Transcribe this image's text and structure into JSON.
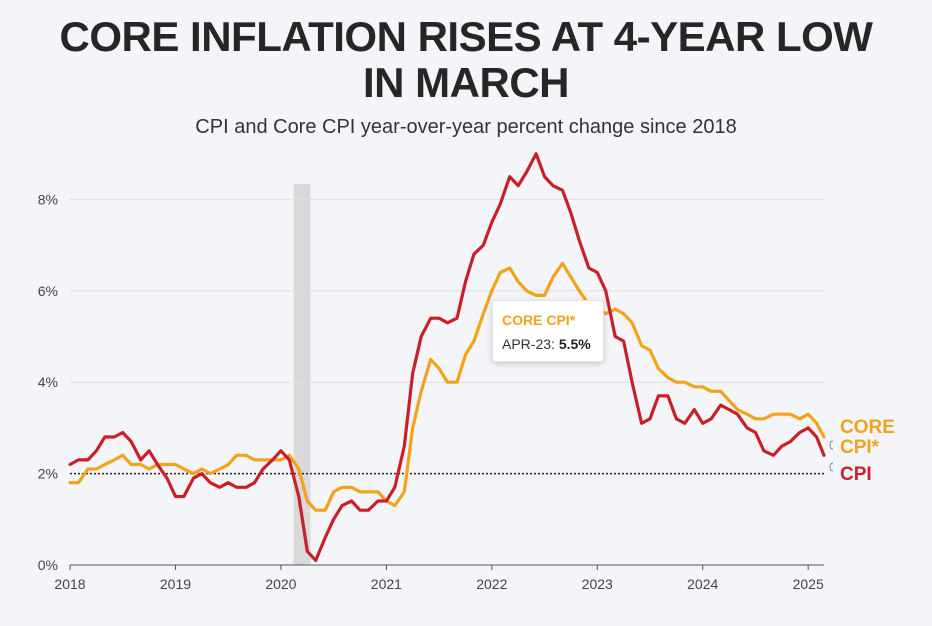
{
  "title_line1": "CORE INFLATION RISES AT 4-YEAR LOW",
  "title_line2": "IN MARCH",
  "subtitle": "CPI and Core CPI year-over-year percent change since 2018",
  "tooltip": {
    "series": "CORE CPI*",
    "label": "APR-23: ",
    "value": "5.5%"
  },
  "colors": {
    "cpi": "#c8202a",
    "core": "#f2a21b",
    "recession": "#d9d9d9",
    "grid": "#dde1e6",
    "axis": "#555555"
  },
  "chart_data": {
    "type": "line",
    "title": "CORE INFLATION RISES AT 4-YEAR LOW IN MARCH",
    "subtitle": "CPI and Core CPI year-over-year percent change since 2018",
    "xlabel": "",
    "ylabel": "",
    "xlim": [
      2018,
      2025.15
    ],
    "ylim": [
      0,
      9.3
    ],
    "x_ticks": [
      2018,
      2019,
      2020,
      2021,
      2022,
      2023,
      2024,
      2025
    ],
    "x_tick_labels": [
      "2018",
      "2019",
      "2020",
      "2021",
      "2022",
      "2023",
      "2024",
      "2025"
    ],
    "y_ticks": [
      0,
      2,
      4,
      6,
      8
    ],
    "y_tick_labels": [
      "0%",
      "2%",
      "4%",
      "6%",
      "8%"
    ],
    "reference_line": {
      "y": 2,
      "style": "dotted"
    },
    "recession_band": {
      "x_start": 2020.12,
      "x_end": 2020.28
    },
    "series": [
      {
        "name": "CPI",
        "label": "CPI",
        "color": "#c8202a",
        "points": [
          [
            2018.0,
            2.2
          ],
          [
            2018.08,
            2.3
          ],
          [
            2018.17,
            2.3
          ],
          [
            2018.25,
            2.5
          ],
          [
            2018.33,
            2.8
          ],
          [
            2018.42,
            2.8
          ],
          [
            2018.5,
            2.9
          ],
          [
            2018.58,
            2.7
          ],
          [
            2018.67,
            2.3
          ],
          [
            2018.75,
            2.5
          ],
          [
            2018.83,
            2.2
          ],
          [
            2018.92,
            1.9
          ],
          [
            2019.0,
            1.5
          ],
          [
            2019.08,
            1.5
          ],
          [
            2019.17,
            1.9
          ],
          [
            2019.25,
            2.0
          ],
          [
            2019.33,
            1.8
          ],
          [
            2019.42,
            1.7
          ],
          [
            2019.5,
            1.8
          ],
          [
            2019.58,
            1.7
          ],
          [
            2019.67,
            1.7
          ],
          [
            2019.75,
            1.8
          ],
          [
            2019.83,
            2.1
          ],
          [
            2019.92,
            2.3
          ],
          [
            2020.0,
            2.5
          ],
          [
            2020.08,
            2.3
          ],
          [
            2020.17,
            1.5
          ],
          [
            2020.25,
            0.3
          ],
          [
            2020.33,
            0.1
          ],
          [
            2020.42,
            0.6
          ],
          [
            2020.5,
            1.0
          ],
          [
            2020.58,
            1.3
          ],
          [
            2020.67,
            1.4
          ],
          [
            2020.75,
            1.2
          ],
          [
            2020.83,
            1.2
          ],
          [
            2020.92,
            1.4
          ],
          [
            2021.0,
            1.4
          ],
          [
            2021.08,
            1.7
          ],
          [
            2021.17,
            2.6
          ],
          [
            2021.25,
            4.2
          ],
          [
            2021.33,
            5.0
          ],
          [
            2021.42,
            5.4
          ],
          [
            2021.5,
            5.4
          ],
          [
            2021.58,
            5.3
          ],
          [
            2021.67,
            5.4
          ],
          [
            2021.75,
            6.2
          ],
          [
            2021.83,
            6.8
          ],
          [
            2021.92,
            7.0
          ],
          [
            2022.0,
            7.5
          ],
          [
            2022.08,
            7.9
          ],
          [
            2022.17,
            8.5
          ],
          [
            2022.25,
            8.3
          ],
          [
            2022.33,
            8.6
          ],
          [
            2022.42,
            9.0
          ],
          [
            2022.5,
            8.5
          ],
          [
            2022.58,
            8.3
          ],
          [
            2022.67,
            8.2
          ],
          [
            2022.75,
            7.7
          ],
          [
            2022.83,
            7.1
          ],
          [
            2022.92,
            6.5
          ],
          [
            2023.0,
            6.4
          ],
          [
            2023.08,
            6.0
          ],
          [
            2023.17,
            5.0
          ],
          [
            2023.25,
            4.9
          ],
          [
            2023.33,
            4.0
          ],
          [
            2023.42,
            3.1
          ],
          [
            2023.5,
            3.2
          ],
          [
            2023.58,
            3.7
          ],
          [
            2023.67,
            3.7
          ],
          [
            2023.75,
            3.2
          ],
          [
            2023.83,
            3.1
          ],
          [
            2023.92,
            3.4
          ],
          [
            2024.0,
            3.1
          ],
          [
            2024.08,
            3.2
          ],
          [
            2024.17,
            3.5
          ],
          [
            2024.25,
            3.4
          ],
          [
            2024.33,
            3.3
          ],
          [
            2024.42,
            3.0
          ],
          [
            2024.5,
            2.9
          ],
          [
            2024.58,
            2.5
          ],
          [
            2024.67,
            2.4
          ],
          [
            2024.75,
            2.6
          ],
          [
            2024.83,
            2.7
          ],
          [
            2024.92,
            2.9
          ],
          [
            2025.0,
            3.0
          ],
          [
            2025.08,
            2.8
          ],
          [
            2025.15,
            2.4
          ]
        ]
      },
      {
        "name": "Core CPI*",
        "label": "CORE CPI*",
        "label_line1": "CORE",
        "label_line2": "CPI*",
        "color": "#f2a21b",
        "points": [
          [
            2018.0,
            1.8
          ],
          [
            2018.08,
            1.8
          ],
          [
            2018.17,
            2.1
          ],
          [
            2018.25,
            2.1
          ],
          [
            2018.33,
            2.2
          ],
          [
            2018.42,
            2.3
          ],
          [
            2018.5,
            2.4
          ],
          [
            2018.58,
            2.2
          ],
          [
            2018.67,
            2.2
          ],
          [
            2018.75,
            2.1
          ],
          [
            2018.83,
            2.2
          ],
          [
            2018.92,
            2.2
          ],
          [
            2019.0,
            2.2
          ],
          [
            2019.08,
            2.1
          ],
          [
            2019.17,
            2.0
          ],
          [
            2019.25,
            2.1
          ],
          [
            2019.33,
            2.0
          ],
          [
            2019.42,
            2.1
          ],
          [
            2019.5,
            2.2
          ],
          [
            2019.58,
            2.4
          ],
          [
            2019.67,
            2.4
          ],
          [
            2019.75,
            2.3
          ],
          [
            2019.83,
            2.3
          ],
          [
            2019.92,
            2.3
          ],
          [
            2020.0,
            2.3
          ],
          [
            2020.08,
            2.4
          ],
          [
            2020.17,
            2.1
          ],
          [
            2020.25,
            1.4
          ],
          [
            2020.33,
            1.2
          ],
          [
            2020.42,
            1.2
          ],
          [
            2020.5,
            1.6
          ],
          [
            2020.58,
            1.7
          ],
          [
            2020.67,
            1.7
          ],
          [
            2020.75,
            1.6
          ],
          [
            2020.83,
            1.6
          ],
          [
            2020.92,
            1.6
          ],
          [
            2021.0,
            1.4
          ],
          [
            2021.08,
            1.3
          ],
          [
            2021.17,
            1.6
          ],
          [
            2021.25,
            3.0
          ],
          [
            2021.33,
            3.8
          ],
          [
            2021.42,
            4.5
          ],
          [
            2021.5,
            4.3
          ],
          [
            2021.58,
            4.0
          ],
          [
            2021.67,
            4.0
          ],
          [
            2021.75,
            4.6
          ],
          [
            2021.83,
            4.9
          ],
          [
            2021.92,
            5.5
          ],
          [
            2022.0,
            6.0
          ],
          [
            2022.08,
            6.4
          ],
          [
            2022.17,
            6.5
          ],
          [
            2022.25,
            6.2
          ],
          [
            2022.33,
            6.0
          ],
          [
            2022.42,
            5.9
          ],
          [
            2022.5,
            5.9
          ],
          [
            2022.58,
            6.3
          ],
          [
            2022.67,
            6.6
          ],
          [
            2022.75,
            6.3
          ],
          [
            2022.83,
            6.0
          ],
          [
            2022.92,
            5.7
          ],
          [
            2023.0,
            5.6
          ],
          [
            2023.08,
            5.5
          ],
          [
            2023.17,
            5.6
          ],
          [
            2023.25,
            5.5
          ],
          [
            2023.33,
            5.3
          ],
          [
            2023.42,
            4.8
          ],
          [
            2023.5,
            4.7
          ],
          [
            2023.58,
            4.3
          ],
          [
            2023.67,
            4.1
          ],
          [
            2023.75,
            4.0
          ],
          [
            2023.83,
            4.0
          ],
          [
            2023.92,
            3.9
          ],
          [
            2024.0,
            3.9
          ],
          [
            2024.08,
            3.8
          ],
          [
            2024.17,
            3.8
          ],
          [
            2024.25,
            3.6
          ],
          [
            2024.33,
            3.4
          ],
          [
            2024.42,
            3.3
          ],
          [
            2024.5,
            3.2
          ],
          [
            2024.58,
            3.2
          ],
          [
            2024.67,
            3.3
          ],
          [
            2024.75,
            3.3
          ],
          [
            2024.83,
            3.3
          ],
          [
            2024.92,
            3.2
          ],
          [
            2025.0,
            3.3
          ],
          [
            2025.08,
            3.1
          ],
          [
            2025.15,
            2.8
          ]
        ]
      }
    ],
    "annotations": [
      {
        "series": "Core CPI*",
        "text": "APR-23: 5.5%",
        "x": 2023.25,
        "y": 5.5
      }
    ]
  }
}
